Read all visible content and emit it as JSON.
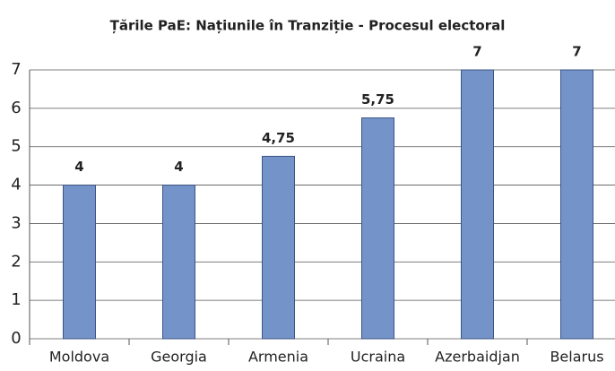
{
  "chart_data": {
    "type": "bar",
    "title": "Țările PaE: Națiunile în Tranziție - Procesul electoral",
    "categories": [
      "Moldova",
      "Georgia",
      "Armenia",
      "Ucraina",
      "Azerbaidjan",
      "Belarus"
    ],
    "values": [
      4,
      4,
      4.75,
      5.75,
      7,
      7
    ],
    "value_labels": [
      "4",
      "4",
      "4,75",
      "5,75",
      "7",
      "7"
    ],
    "color": "#7393c9",
    "ylim": [
      0,
      7
    ],
    "yticks": [
      0,
      1,
      2,
      3,
      4,
      5,
      6,
      7
    ],
    "grid": true
  }
}
